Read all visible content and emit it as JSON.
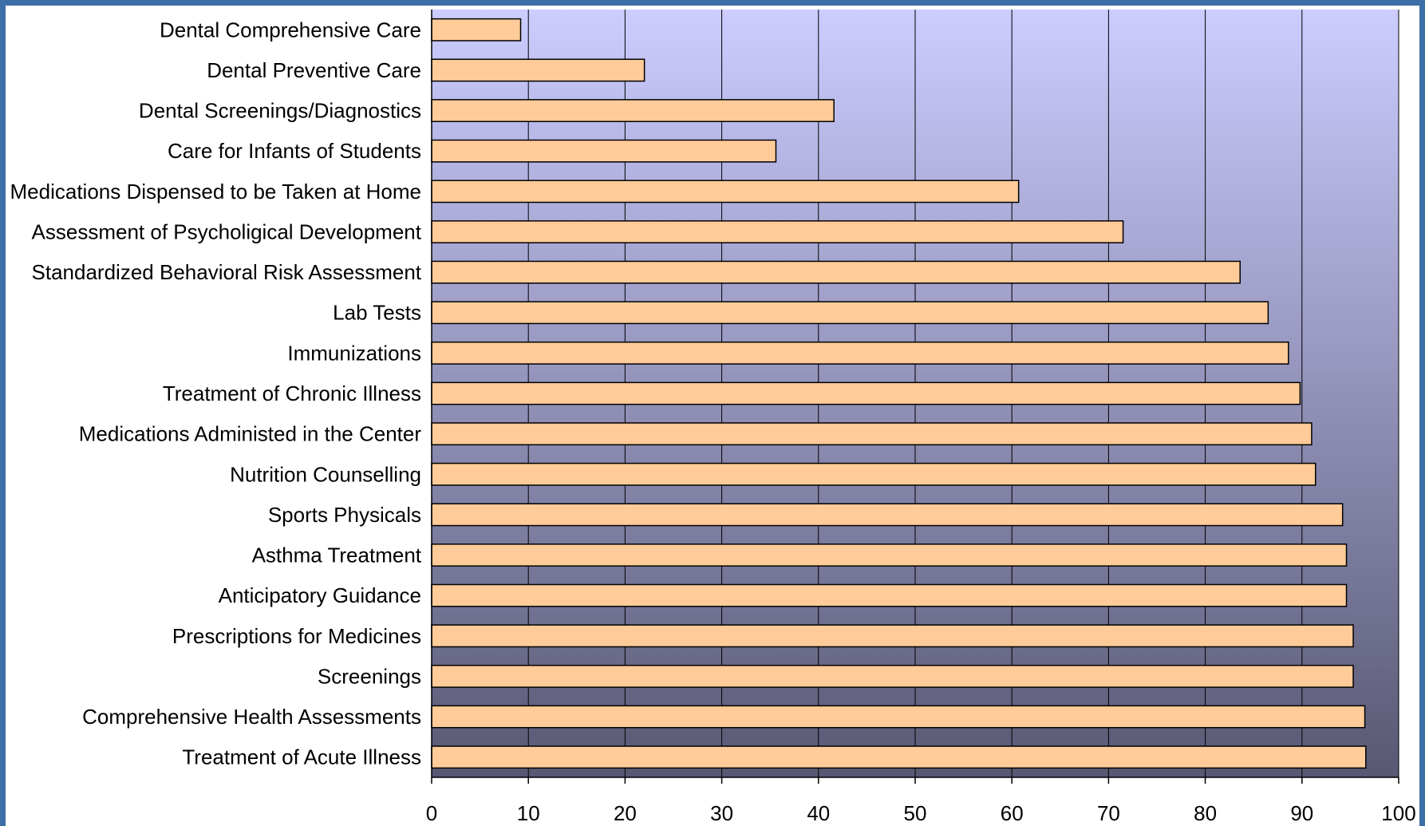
{
  "colors": {
    "frame": "#3e6fa8",
    "plot_top": "#ccccff",
    "plot_bottom": "#585873",
    "bar_fill": "#ffcc99",
    "bar_stroke": "#000000",
    "gridline": "#000000"
  },
  "chart_data": {
    "type": "bar",
    "orientation": "horizontal",
    "categories": [
      "Dental Comprehensive Care",
      "Dental Preventive Care",
      "Dental Screenings/Diagnostics",
      "Care for Infants of Students",
      "Medications Dispensed to be Taken at Home",
      "Assessment of Psycholigical Development",
      "Standardized Behavioral Risk Assessment",
      "Lab Tests",
      "Immunizations",
      "Treatment of Chronic Illness",
      "Medications Administed in the Center",
      "Nutrition Counselling",
      "Sports Physicals",
      "Asthma Treatment",
      "Anticipatory Guidance",
      "Prescriptions for Medicines",
      "Screenings",
      "Comprehensive Health Assessments",
      "Treatment of Acute Illness"
    ],
    "values": [
      9.2,
      22,
      41.6,
      35.6,
      60.7,
      71.5,
      83.6,
      86.5,
      88.6,
      89.8,
      91,
      91.4,
      94.2,
      94.6,
      94.6,
      95.3,
      95.3,
      96.5,
      96.6
    ],
    "xlim": [
      0,
      100
    ],
    "xticks": [
      "0",
      "10",
      "20",
      "30",
      "40",
      "50",
      "60",
      "70",
      "80",
      "90",
      "100"
    ],
    "title": "",
    "xlabel": "",
    "ylabel": "",
    "grid": "vertical",
    "legend": "none"
  }
}
